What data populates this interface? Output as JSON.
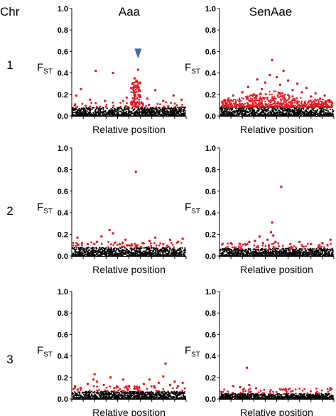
{
  "headers": {
    "chr": "Chr",
    "columns": [
      "Aaa",
      "SenAae"
    ]
  },
  "chromosomes": [
    "1",
    "2",
    "3"
  ],
  "axis": {
    "ylabel_main": "F",
    "ylabel_sub": "ST",
    "xlabel": "Relative position",
    "yticks": [
      "0.0",
      "0.2",
      "0.4",
      "0.6",
      "0.8",
      "1.0"
    ]
  },
  "colors": {
    "background_points": "#000000",
    "outlier_points": "#e8141e",
    "marker": "#3d6fa8"
  },
  "chart_data": [
    {
      "type": "scatter",
      "chromosome": "1",
      "population": "Aaa",
      "xlabel": "Relative position",
      "ylabel": "FST",
      "ylim": [
        0,
        1
      ],
      "xlim": [
        0,
        1
      ],
      "baseline": {
        "max_fst": 0.08
      },
      "outliers": [
        [
          0.04,
          0.19
        ],
        [
          0.08,
          0.25
        ],
        [
          0.16,
          0.15
        ],
        [
          0.21,
          0.42
        ],
        [
          0.29,
          0.14
        ],
        [
          0.36,
          0.4
        ],
        [
          0.45,
          0.14
        ],
        [
          0.48,
          0.17
        ],
        [
          0.52,
          0.26
        ],
        [
          0.53,
          0.3
        ],
        [
          0.54,
          0.22
        ],
        [
          0.55,
          0.35
        ],
        [
          0.56,
          0.28
        ],
        [
          0.57,
          0.32
        ],
        [
          0.58,
          0.43
        ],
        [
          0.59,
          0.24
        ],
        [
          0.6,
          0.18
        ],
        [
          0.66,
          0.16
        ],
        [
          0.73,
          0.24
        ],
        [
          0.8,
          0.14
        ],
        [
          0.89,
          0.19
        ],
        [
          0.96,
          0.15
        ]
      ],
      "marker": {
        "x": 0.58,
        "y": 0.58,
        "shape": "triangle-down"
      }
    },
    {
      "type": "scatter",
      "chromosome": "1",
      "population": "SenAae",
      "xlabel": "Relative position",
      "ylabel": "FST",
      "ylim": [
        0,
        1
      ],
      "xlim": [
        0,
        1
      ],
      "baseline": {
        "max_fst": 0.09
      },
      "outliers": [
        [
          0.08,
          0.16
        ],
        [
          0.12,
          0.19
        ],
        [
          0.18,
          0.14
        ],
        [
          0.2,
          0.22
        ],
        [
          0.25,
          0.27
        ],
        [
          0.3,
          0.2
        ],
        [
          0.33,
          0.34
        ],
        [
          0.37,
          0.25
        ],
        [
          0.4,
          0.31
        ],
        [
          0.44,
          0.38
        ],
        [
          0.46,
          0.52
        ],
        [
          0.5,
          0.36
        ],
        [
          0.53,
          0.29
        ],
        [
          0.56,
          0.42
        ],
        [
          0.6,
          0.33
        ],
        [
          0.64,
          0.24
        ],
        [
          0.68,
          0.3
        ],
        [
          0.72,
          0.22
        ],
        [
          0.76,
          0.26
        ],
        [
          0.8,
          0.18
        ],
        [
          0.84,
          0.21
        ],
        [
          0.88,
          0.16
        ],
        [
          0.92,
          0.19
        ],
        [
          0.96,
          0.14
        ]
      ],
      "dense_band": {
        "x": [
          0.02,
          0.99
        ],
        "fst": [
          0.1,
          0.28
        ]
      }
    },
    {
      "type": "scatter",
      "chromosome": "2",
      "population": "Aaa",
      "xlabel": "Relative position",
      "ylabel": "FST",
      "ylim": [
        0,
        1
      ],
      "xlim": [
        0,
        1
      ],
      "baseline": {
        "max_fst": 0.08
      },
      "outliers": [
        [
          0.05,
          0.17
        ],
        [
          0.09,
          0.12
        ],
        [
          0.14,
          0.11
        ],
        [
          0.22,
          0.13
        ],
        [
          0.26,
          0.18
        ],
        [
          0.33,
          0.24
        ],
        [
          0.36,
          0.21
        ],
        [
          0.42,
          0.11
        ],
        [
          0.47,
          0.15
        ],
        [
          0.56,
          0.78
        ],
        [
          0.62,
          0.12
        ],
        [
          0.68,
          0.14
        ],
        [
          0.73,
          0.17
        ],
        [
          0.8,
          0.11
        ],
        [
          0.86,
          0.15
        ],
        [
          0.93,
          0.13
        ],
        [
          0.97,
          0.16
        ]
      ]
    },
    {
      "type": "scatter",
      "chromosome": "2",
      "population": "SenAae",
      "xlabel": "Relative position",
      "ylabel": "FST",
      "ylim": [
        0,
        1
      ],
      "xlim": [
        0,
        1
      ],
      "baseline": {
        "max_fst": 0.07
      },
      "outliers": [
        [
          0.1,
          0.12
        ],
        [
          0.18,
          0.11
        ],
        [
          0.26,
          0.13
        ],
        [
          0.31,
          0.14
        ],
        [
          0.35,
          0.18
        ],
        [
          0.38,
          0.12
        ],
        [
          0.42,
          0.15
        ],
        [
          0.45,
          0.22
        ],
        [
          0.46,
          0.31
        ],
        [
          0.47,
          0.19
        ],
        [
          0.49,
          0.13
        ],
        [
          0.54,
          0.64
        ],
        [
          0.62,
          0.11
        ],
        [
          0.7,
          0.13
        ],
        [
          0.8,
          0.11
        ],
        [
          0.9,
          0.12
        ],
        [
          0.97,
          0.15
        ]
      ]
    },
    {
      "type": "scatter",
      "chromosome": "3",
      "population": "Aaa",
      "xlabel": "Relative position",
      "ylabel": "FST",
      "ylim": [
        0,
        1
      ],
      "xlim": [
        0,
        1
      ],
      "baseline": {
        "max_fst": 0.07
      },
      "outliers": [
        [
          0.03,
          0.12
        ],
        [
          0.08,
          0.1
        ],
        [
          0.14,
          0.14
        ],
        [
          0.19,
          0.18
        ],
        [
          0.2,
          0.23
        ],
        [
          0.22,
          0.16
        ],
        [
          0.28,
          0.13
        ],
        [
          0.34,
          0.2
        ],
        [
          0.4,
          0.11
        ],
        [
          0.45,
          0.18
        ],
        [
          0.5,
          0.12
        ],
        [
          0.57,
          0.1
        ],
        [
          0.63,
          0.14
        ],
        [
          0.68,
          0.18
        ],
        [
          0.72,
          0.12
        ],
        [
          0.76,
          0.15
        ],
        [
          0.8,
          0.21
        ],
        [
          0.82,
          0.33
        ],
        [
          0.86,
          0.13
        ],
        [
          0.9,
          0.16
        ],
        [
          0.93,
          0.12
        ],
        [
          0.97,
          0.15
        ]
      ]
    },
    {
      "type": "scatter",
      "chromosome": "3",
      "population": "SenAae",
      "xlabel": "Relative position",
      "ylabel": "FST",
      "ylim": [
        0,
        1
      ],
      "xlim": [
        0,
        1
      ],
      "baseline": {
        "max_fst": 0.05
      },
      "outliers": [
        [
          0.12,
          0.12
        ],
        [
          0.18,
          0.11
        ],
        [
          0.24,
          0.29
        ],
        [
          0.26,
          0.13
        ],
        [
          0.32,
          0.1
        ],
        [
          0.97,
          0.1
        ]
      ]
    }
  ]
}
